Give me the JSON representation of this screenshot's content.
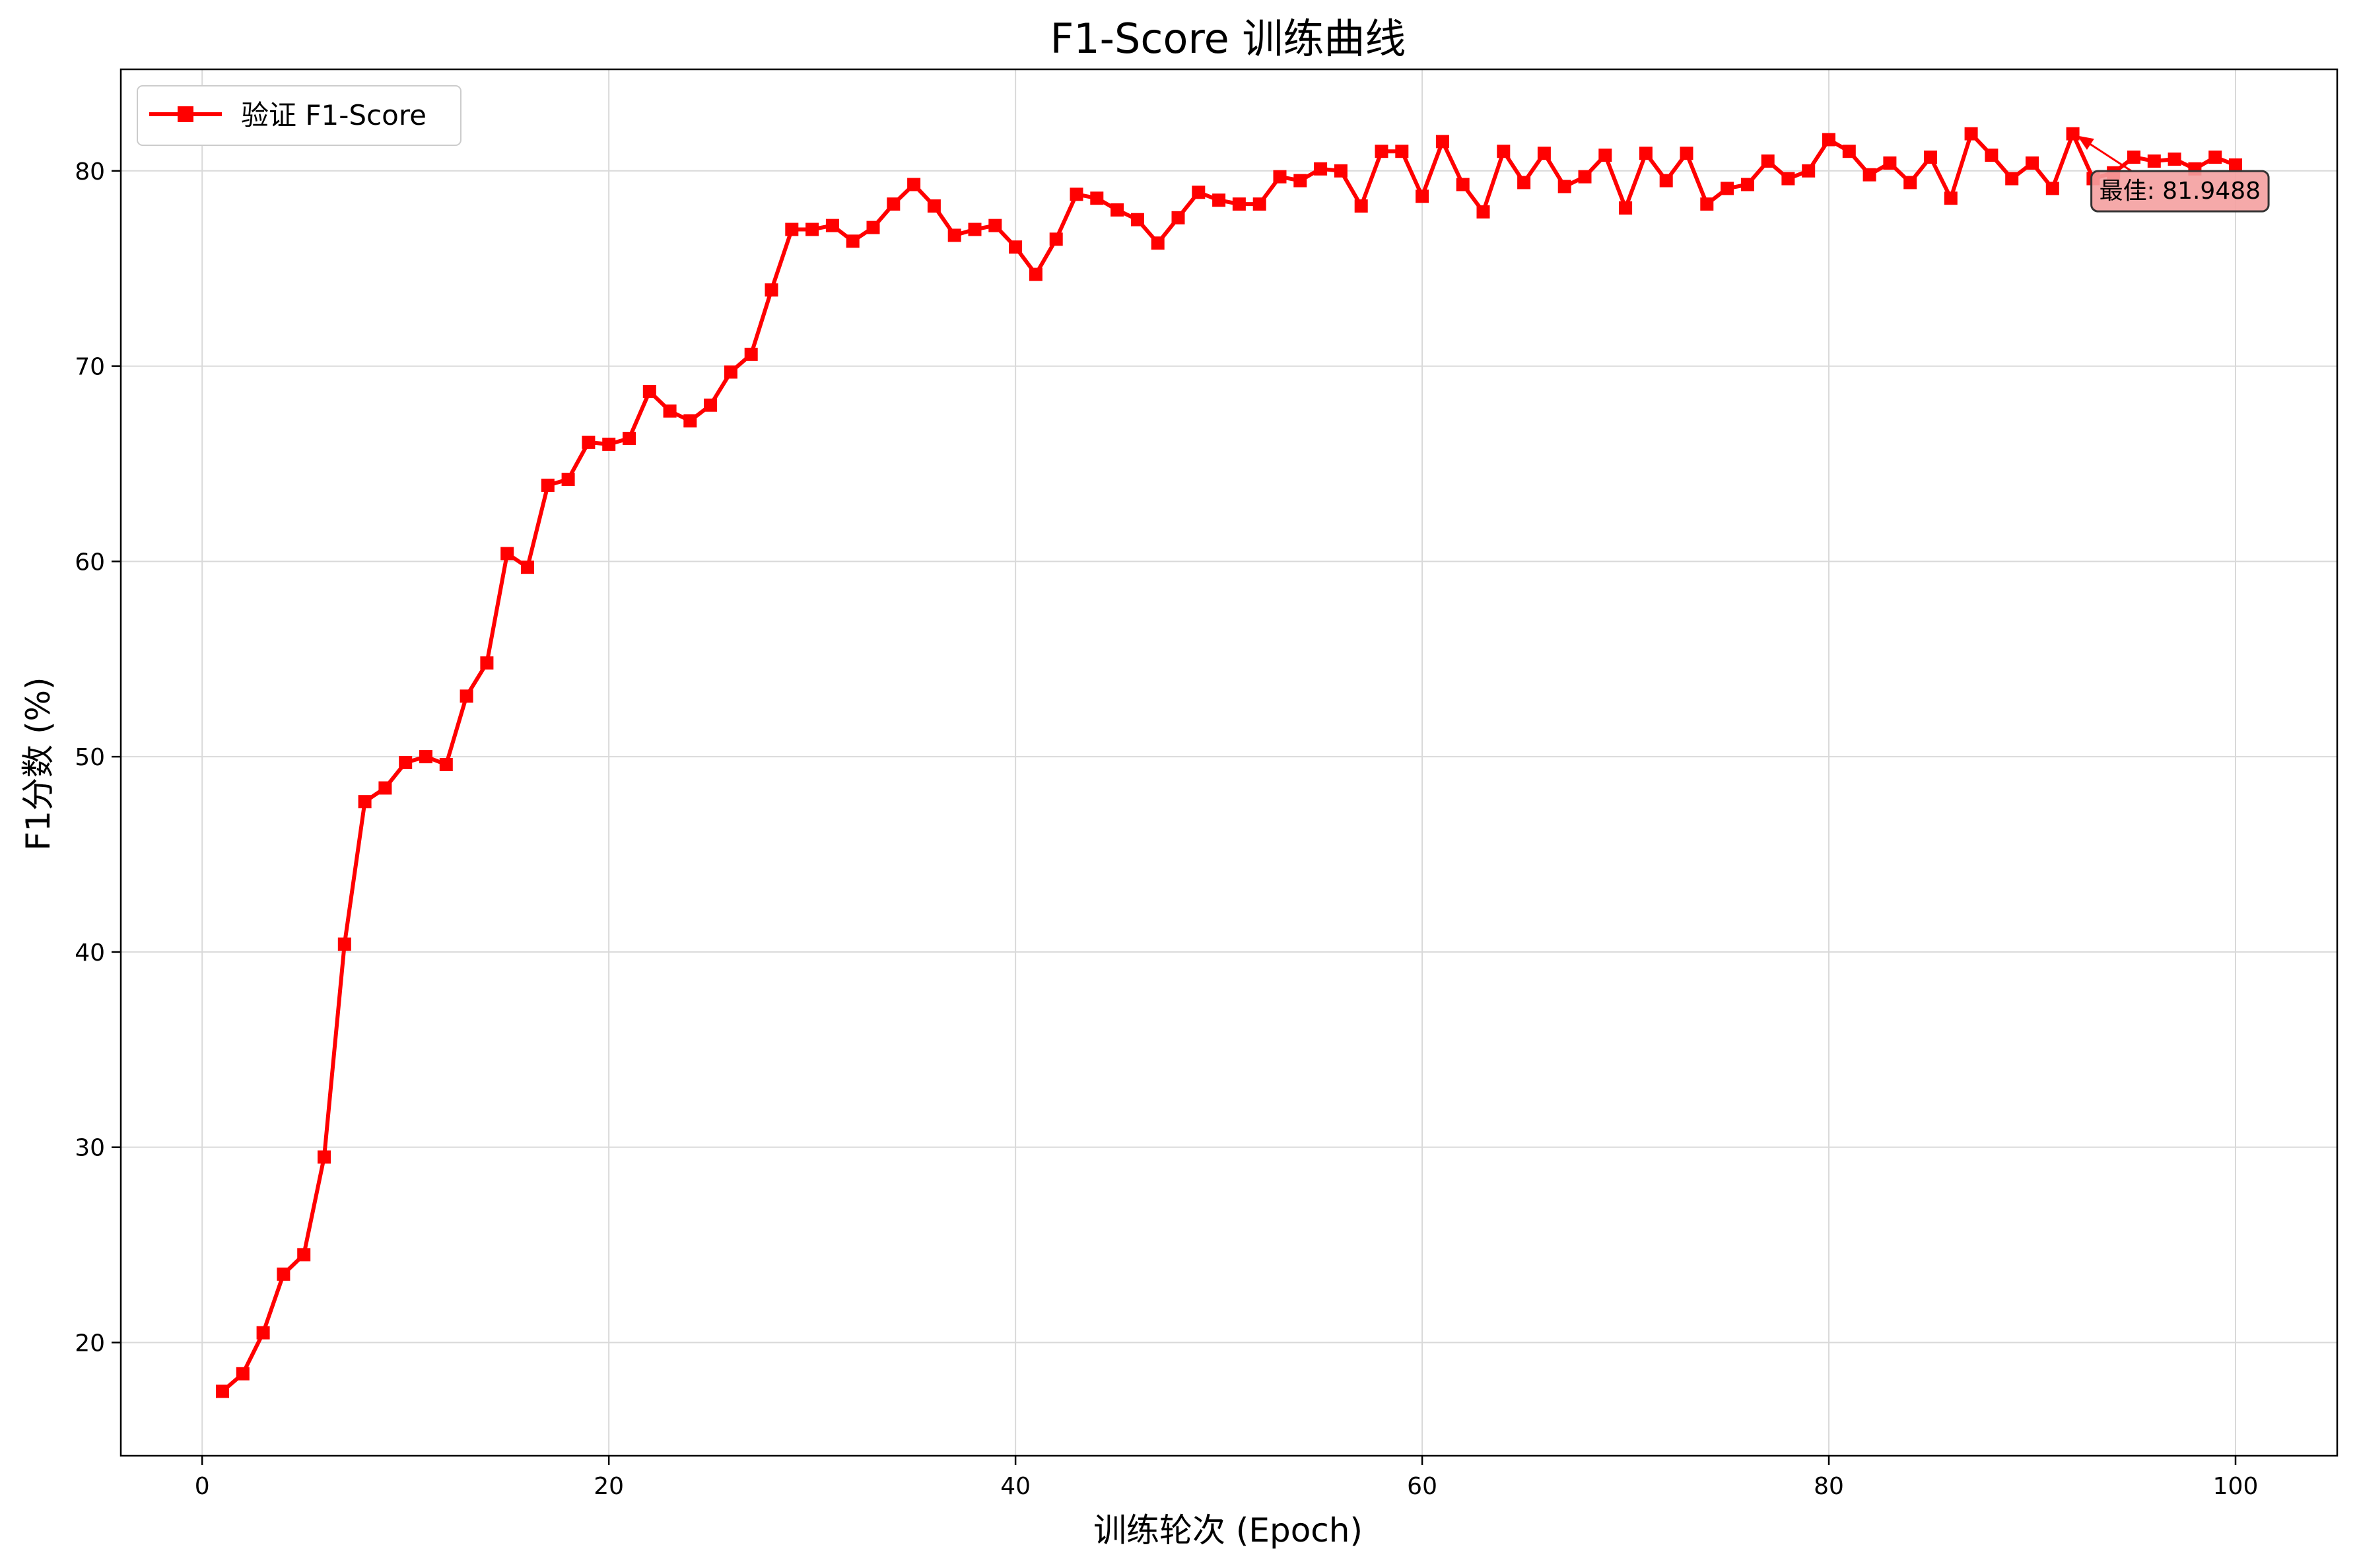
{
  "chart_data": {
    "type": "line",
    "title": "F1-Score 训练曲线",
    "xlabel": "训练轮次 (Epoch)",
    "ylabel": "F1分数 (%)",
    "xlim": [
      -4,
      105
    ],
    "ylim": [
      14.2,
      85.2
    ],
    "xticks": [
      0,
      20,
      40,
      60,
      80,
      100
    ],
    "yticks": [
      20,
      30,
      40,
      50,
      60,
      70,
      80
    ],
    "grid": true,
    "legend_position": "top-left",
    "series": [
      {
        "name": "验证 F1-Score",
        "color": "#ff0000",
        "marker": "square",
        "x": [
          1,
          2,
          3,
          4,
          5,
          6,
          7,
          8,
          9,
          10,
          11,
          12,
          13,
          14,
          15,
          16,
          17,
          18,
          19,
          20,
          21,
          22,
          23,
          24,
          25,
          26,
          27,
          28,
          29,
          30,
          31,
          32,
          33,
          34,
          35,
          36,
          37,
          38,
          39,
          40,
          41,
          42,
          43,
          44,
          45,
          46,
          47,
          48,
          49,
          50,
          51,
          52,
          53,
          54,
          55,
          56,
          57,
          58,
          59,
          60,
          61,
          62,
          63,
          64,
          65,
          66,
          67,
          68,
          69,
          70,
          71,
          72,
          73,
          74,
          75,
          76,
          77,
          78,
          79,
          80,
          81,
          82,
          83,
          84,
          85,
          86,
          87,
          88,
          89,
          90,
          91,
          92,
          93,
          94,
          95,
          96,
          97,
          98,
          99,
          100
        ],
        "y": [
          17.5,
          18.4,
          20.5,
          23.5,
          24.5,
          29.5,
          40.4,
          47.7,
          48.4,
          49.7,
          50.0,
          49.6,
          53.1,
          54.8,
          60.4,
          59.7,
          63.9,
          64.2,
          66.1,
          66.0,
          66.3,
          68.7,
          67.7,
          67.2,
          68.0,
          69.7,
          70.6,
          73.9,
          77.0,
          77.0,
          77.2,
          76.4,
          77.1,
          78.3,
          79.3,
          78.2,
          76.7,
          77.0,
          77.2,
          76.1,
          74.7,
          76.5,
          78.8,
          78.6,
          78.0,
          77.5,
          76.3,
          77.6,
          78.9,
          78.5,
          78.3,
          78.3,
          79.7,
          79.5,
          80.1,
          80.0,
          78.2,
          81.0,
          81.0,
          78.7,
          81.5,
          79.3,
          77.9,
          81.0,
          79.4,
          80.9,
          79.2,
          79.7,
          80.8,
          78.1,
          80.9,
          79.5,
          80.9,
          78.3,
          79.1,
          79.3,
          80.5,
          79.6,
          80.0,
          81.6,
          81.0,
          79.8,
          80.4,
          79.4,
          80.7,
          78.6,
          81.9,
          80.8,
          79.6,
          80.4,
          79.1,
          81.9,
          79.6,
          79.9,
          80.7,
          80.5,
          80.6,
          80.1,
          80.7,
          80.3
        ]
      }
    ],
    "annotation": {
      "text": "最佳: 81.9488",
      "x": 92,
      "y": 81.9488,
      "box_color": "#f4a0a0"
    }
  }
}
